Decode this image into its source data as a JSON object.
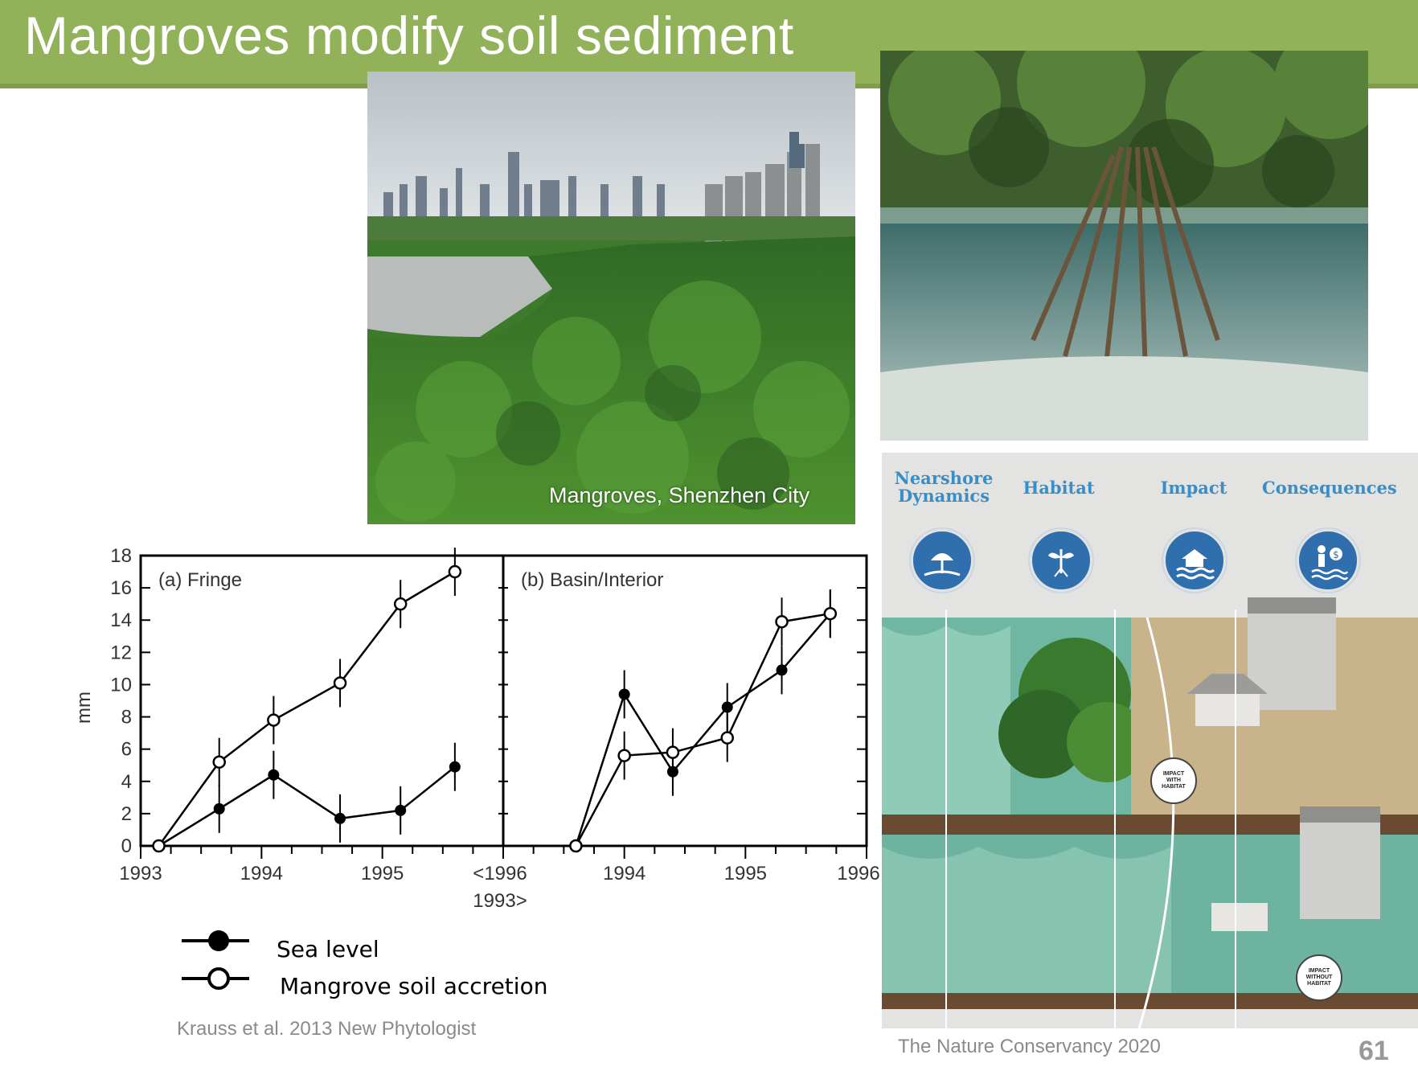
{
  "slide": {
    "title": "Mangroves modify soil sediment",
    "page_number": "61"
  },
  "photo_city": {
    "caption": "Mangroves, Shenzhen City"
  },
  "nature_panel": {
    "columns": [
      {
        "label": "Nearshore Dynamics",
        "icon": "beach-umbrella-icon"
      },
      {
        "label": "Habitat",
        "icon": "mangrove-plant-icon"
      },
      {
        "label": "Impact",
        "icon": "house-flood-icon"
      },
      {
        "label": "Consequences",
        "icon": "person-money-icon"
      }
    ],
    "badges": [
      "IMPACT WITH HABITAT",
      "IMPACT WITHOUT HABITAT"
    ],
    "credit": "The Nature Conservancy 2020"
  },
  "chart_data": [
    {
      "type": "line",
      "panel_label": "(a) Fringe",
      "ylabel": "mm",
      "ylim": [
        0,
        18
      ],
      "yticks": [
        "0",
        "2",
        "4",
        "6",
        "8",
        "10",
        "12",
        "14",
        "16",
        "18"
      ],
      "xlim": [
        1993,
        1996
      ],
      "xticks": [
        "1993",
        "1994",
        "1995",
        "<1996"
      ],
      "series": [
        {
          "name": "Sea level",
          "marker": "filled",
          "x": [
            1993.15,
            1993.65,
            1994.1,
            1994.65,
            1995.15,
            1995.6
          ],
          "y": [
            0,
            2.3,
            4.4,
            1.7,
            2.2,
            4.9
          ]
        },
        {
          "name": "Mangrove soil accretion",
          "marker": "open",
          "x": [
            1993.15,
            1993.65,
            1994.1,
            1994.65,
            1995.15,
            1995.6
          ],
          "y": [
            0,
            5.2,
            7.8,
            10.1,
            15.0,
            17.0
          ]
        }
      ]
    },
    {
      "type": "line",
      "panel_label": "(b) Basin/Interior",
      "ylim": [
        0,
        18
      ],
      "xlim": [
        1993,
        1996
      ],
      "xticks": [
        "1993>",
        "1994",
        "1995",
        "1996"
      ],
      "series": [
        {
          "name": "Sea level",
          "marker": "filled",
          "x": [
            1993.6,
            1994.0,
            1994.4,
            1994.85,
            1995.3,
            1995.7
          ],
          "y": [
            0,
            9.4,
            4.6,
            8.6,
            10.9,
            14.4
          ]
        },
        {
          "name": "Mangrove soil accretion",
          "marker": "open",
          "x": [
            1993.6,
            1994.0,
            1994.4,
            1994.85,
            1995.3,
            1995.7
          ],
          "y": [
            0,
            5.6,
            5.8,
            6.7,
            13.9,
            14.4
          ]
        }
      ]
    }
  ],
  "legend": {
    "sea_level": "Sea level",
    "accretion": "Mangrove soil accretion"
  },
  "chart_credit": "Krauss et al. 2013 New Phytologist"
}
